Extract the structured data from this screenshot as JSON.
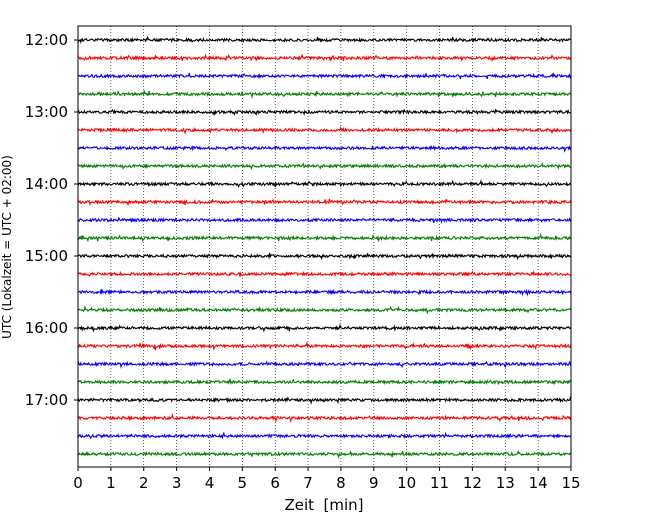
{
  "chart_data": {
    "type": "line",
    "subtype": "helicorder",
    "xlabel": "Zeit  [min]",
    "ylabel": "UTC (Lokalzeit = UTC + 02:00)",
    "xlim": [
      0,
      15
    ],
    "x_ticks": [
      "0",
      "1",
      "2",
      "3",
      "4",
      "5",
      "6",
      "7",
      "8",
      "9",
      "10",
      "11",
      "12",
      "13",
      "14",
      "15"
    ],
    "grid": "vertical dotted at each minute",
    "y_tick_labels": [
      "12:00",
      "13:00",
      "14:00",
      "15:00",
      "16:00",
      "17:00"
    ],
    "trace_interval_minutes": 15,
    "trace_colors": [
      "#000000",
      "#ff0000",
      "#0000ff",
      "#008000"
    ],
    "traces": [
      {
        "start": "12:00"
      },
      {
        "start": "12:15"
      },
      {
        "start": "12:30"
      },
      {
        "start": "12:45"
      },
      {
        "start": "13:00"
      },
      {
        "start": "13:15"
      },
      {
        "start": "13:30"
      },
      {
        "start": "13:45"
      },
      {
        "start": "14:00"
      },
      {
        "start": "14:15"
      },
      {
        "start": "14:30"
      },
      {
        "start": "14:45"
      },
      {
        "start": "15:00"
      },
      {
        "start": "15:15"
      },
      {
        "start": "15:30"
      },
      {
        "start": "15:45"
      },
      {
        "start": "16:00"
      },
      {
        "start": "16:15"
      },
      {
        "start": "16:30"
      },
      {
        "start": "16:45"
      },
      {
        "start": "17:00"
      },
      {
        "start": "17:15"
      },
      {
        "start": "17:30"
      },
      {
        "start": "17:45"
      }
    ]
  }
}
